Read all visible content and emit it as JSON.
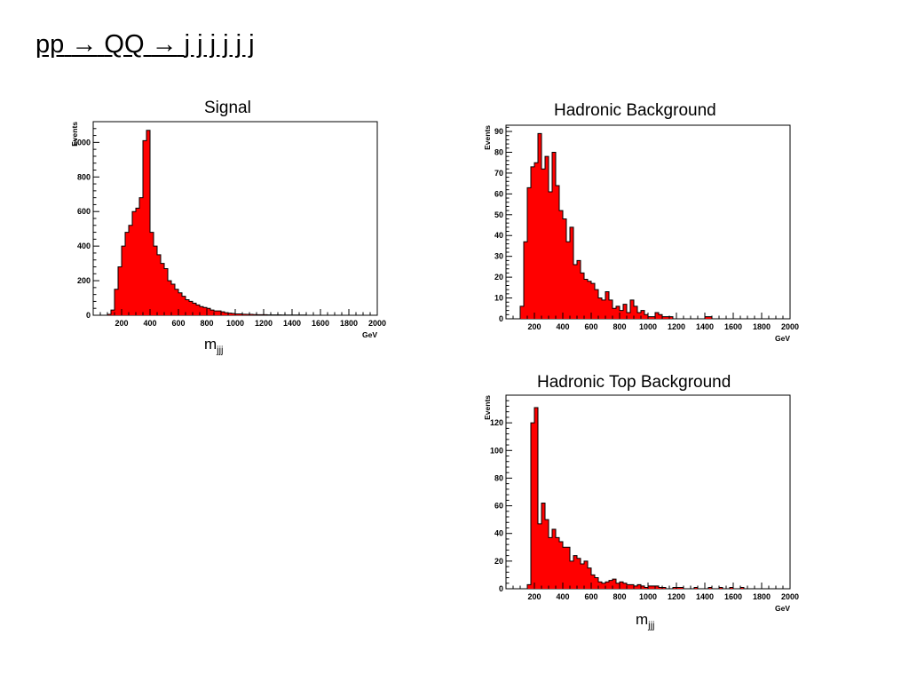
{
  "page": {
    "title_parts": [
      "pp",
      "→",
      "QQ",
      "→",
      "j j j j j j"
    ]
  },
  "xlabel_main": "m",
  "xlabel_sub": "jjj",
  "chart_data": [
    {
      "type": "bar",
      "title": "Signal",
      "ylabel": "Events",
      "xunit": "GeV",
      "xlim": [
        0,
        2000
      ],
      "ylim": [
        0,
        1120
      ],
      "yticks": [
        0,
        200,
        400,
        600,
        800,
        1000
      ],
      "xticks": [
        200,
        400,
        600,
        800,
        1000,
        1200,
        1400,
        1600,
        1800,
        2000
      ],
      "color": "#ff0000",
      "bin_width": 25,
      "bin_start": 100,
      "values": [
        5,
        30,
        150,
        280,
        400,
        480,
        520,
        600,
        620,
        680,
        1010,
        1070,
        480,
        400,
        350,
        300,
        270,
        200,
        180,
        150,
        130,
        110,
        90,
        80,
        70,
        60,
        50,
        45,
        40,
        30,
        25,
        25,
        20,
        15,
        12,
        10,
        8,
        8,
        6,
        5,
        5,
        4,
        3,
        3,
        3,
        2,
        2,
        2,
        2,
        1,
        1,
        1,
        1,
        1,
        1,
        1,
        0,
        0,
        0,
        0,
        0,
        0,
        0,
        0,
        0,
        0,
        0,
        0,
        0,
        0,
        0,
        0,
        0,
        0,
        0,
        0
      ]
    },
    {
      "type": "bar",
      "title": "Hadronic Background",
      "ylabel": "Events",
      "xunit": "GeV",
      "xlim": [
        0,
        2000
      ],
      "ylim": [
        0,
        93
      ],
      "yticks": [
        0,
        10,
        20,
        30,
        40,
        50,
        60,
        70,
        80,
        90
      ],
      "xticks": [
        200,
        400,
        600,
        800,
        1000,
        1200,
        1400,
        1600,
        1800,
        2000
      ],
      "color": "#ff0000",
      "bin_width": 25,
      "bin_start": 100,
      "values": [
        6,
        37,
        63,
        73,
        75,
        89,
        72,
        78,
        61,
        80,
        64,
        52,
        48,
        37,
        44,
        26,
        28,
        22,
        19,
        18,
        17,
        14,
        10,
        9,
        13,
        9,
        5,
        6,
        4,
        7,
        3,
        9,
        6,
        3,
        4,
        2,
        1,
        1,
        3,
        2,
        1,
        1,
        1,
        0,
        0,
        0,
        0,
        0,
        0,
        0,
        0,
        0,
        1,
        1,
        0,
        0,
        0,
        0,
        0,
        0,
        0,
        0,
        0,
        0,
        0,
        0,
        0,
        0,
        0,
        0,
        0,
        0,
        0,
        0,
        0,
        0
      ]
    },
    {
      "type": "bar",
      "title": "Hadronic Top Background",
      "ylabel": "Events",
      "xunit": "GeV",
      "xlim": [
        0,
        2000
      ],
      "ylim": [
        0,
        140
      ],
      "yticks": [
        0,
        20,
        40,
        60,
        80,
        100,
        120
      ],
      "xticks": [
        200,
        400,
        600,
        800,
        1000,
        1200,
        1400,
        1600,
        1800,
        2000
      ],
      "color": "#ff0000",
      "bin_width": 25,
      "bin_start": 100,
      "values": [
        0,
        0,
        3,
        120,
        131,
        47,
        62,
        50,
        37,
        43,
        37,
        34,
        30,
        30,
        20,
        24,
        22,
        18,
        20,
        15,
        10,
        8,
        5,
        4,
        5,
        6,
        7,
        4,
        5,
        4,
        3,
        3,
        2,
        3,
        2,
        1,
        2,
        2,
        2,
        1,
        1,
        0,
        0,
        1,
        1,
        1,
        0,
        0,
        0,
        1,
        0,
        0,
        0,
        1,
        0,
        0,
        1,
        0,
        0,
        1,
        0,
        0,
        1,
        0,
        0,
        0,
        0,
        0,
        0,
        0,
        0,
        0,
        0,
        0,
        0,
        0
      ]
    }
  ]
}
